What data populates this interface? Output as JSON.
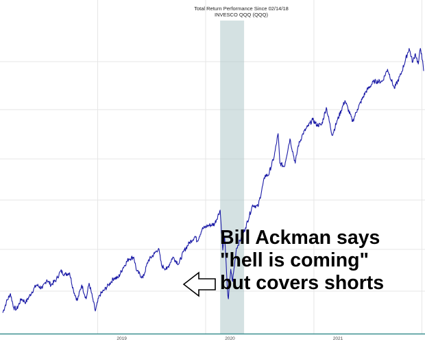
{
  "chart_data": {
    "type": "line",
    "title": "Total Return Performance Since 02/14/18",
    "subtitle": "INVESCO QQQ (QQQ)",
    "xlabel": "",
    "ylabel": "",
    "grid": true,
    "x_ticks": [
      "2019",
      "2020",
      "2021"
    ],
    "ylim": [
      -12,
      168
    ],
    "shaded_region": {
      "start": "2020-02-19",
      "end": "2020-05-10"
    },
    "series": [
      {
        "color": "#1a1aa6",
        "points": [
          [
            "2018-02-14",
            0
          ],
          [
            "2018-02-26",
            6
          ],
          [
            "2018-03-12",
            11
          ],
          [
            "2018-03-23",
            3
          ],
          [
            "2018-04-02",
            2
          ],
          [
            "2018-04-18",
            8
          ],
          [
            "2018-05-03",
            6
          ],
          [
            "2018-05-24",
            12
          ],
          [
            "2018-06-08",
            16
          ],
          [
            "2018-06-28",
            14
          ],
          [
            "2018-07-13",
            19
          ],
          [
            "2018-07-27",
            16
          ],
          [
            "2018-08-14",
            19
          ],
          [
            "2018-08-29",
            24
          ],
          [
            "2018-09-12",
            22
          ],
          [
            "2018-09-28",
            23
          ],
          [
            "2018-10-11",
            13
          ],
          [
            "2018-10-24",
            7
          ],
          [
            "2018-11-08",
            16
          ],
          [
            "2018-11-23",
            8
          ],
          [
            "2018-12-03",
            17
          ],
          [
            "2018-12-14",
            9
          ],
          [
            "2018-12-24",
            1
          ],
          [
            "2019-01-07",
            10
          ],
          [
            "2019-01-23",
            13
          ],
          [
            "2019-02-07",
            16
          ],
          [
            "2019-02-25",
            20
          ],
          [
            "2019-03-11",
            20
          ],
          [
            "2019-03-28",
            26
          ],
          [
            "2019-04-16",
            31
          ],
          [
            "2019-05-03",
            32
          ],
          [
            "2019-05-13",
            24
          ],
          [
            "2019-06-03",
            20
          ],
          [
            "2019-06-21",
            30
          ],
          [
            "2019-07-12",
            34
          ],
          [
            "2019-07-26",
            37
          ],
          [
            "2019-08-05",
            27
          ],
          [
            "2019-08-23",
            25
          ],
          [
            "2019-09-12",
            32
          ],
          [
            "2019-10-02",
            28
          ],
          [
            "2019-10-18",
            35
          ],
          [
            "2019-11-06",
            40
          ],
          [
            "2019-11-27",
            44
          ],
          [
            "2019-12-03",
            41
          ],
          [
            "2019-12-20",
            48
          ],
          [
            "2020-01-07",
            50
          ],
          [
            "2020-01-31",
            51
          ],
          [
            "2020-02-19",
            59
          ],
          [
            "2020-02-28",
            36
          ],
          [
            "2020-03-05",
            44
          ],
          [
            "2020-03-12",
            22
          ],
          [
            "2020-03-16",
            10
          ],
          [
            "2020-03-18",
            8
          ],
          [
            "2020-03-26",
            25
          ],
          [
            "2020-04-01",
            18
          ],
          [
            "2020-04-14",
            37
          ],
          [
            "2020-04-30",
            43
          ],
          [
            "2020-05-15",
            49
          ],
          [
            "2020-06-08",
            62
          ],
          [
            "2020-06-26",
            61
          ],
          [
            "2020-07-20",
            79
          ],
          [
            "2020-07-31",
            79
          ],
          [
            "2020-08-20",
            90
          ],
          [
            "2020-09-02",
            103
          ],
          [
            "2020-09-08",
            86
          ],
          [
            "2020-09-23",
            84
          ],
          [
            "2020-10-12",
            100
          ],
          [
            "2020-10-30",
            86
          ],
          [
            "2020-11-09",
            96
          ],
          [
            "2020-11-25",
            103
          ],
          [
            "2020-12-11",
            107
          ],
          [
            "2020-12-28",
            111
          ],
          [
            "2021-01-11",
            108
          ],
          [
            "2021-01-27",
            108
          ],
          [
            "2021-02-12",
            118
          ],
          [
            "2021-03-04",
            102
          ],
          [
            "2021-03-22",
            111
          ],
          [
            "2021-04-16",
            122
          ],
          [
            "2021-05-12",
            110
          ],
          [
            "2021-05-28",
            117
          ],
          [
            "2021-06-25",
            127
          ],
          [
            "2021-07-23",
            133
          ],
          [
            "2021-08-20",
            133
          ],
          [
            "2021-09-07",
            140
          ],
          [
            "2021-09-30",
            129
          ],
          [
            "2021-10-22",
            137
          ],
          [
            "2021-11-19",
            152
          ],
          [
            "2021-12-01",
            144
          ],
          [
            "2021-12-10",
            149
          ],
          [
            "2021-12-20",
            143
          ],
          [
            "2021-12-27",
            152
          ],
          [
            "2021-12-31",
            149
          ],
          [
            "2022-01-07",
            139
          ]
        ]
      }
    ]
  },
  "annotation": {
    "lines": [
      "Bill Ackman says",
      "\"hell is coming\"",
      "but covers shorts"
    ],
    "arrow_icon": "left-arrow-icon"
  }
}
